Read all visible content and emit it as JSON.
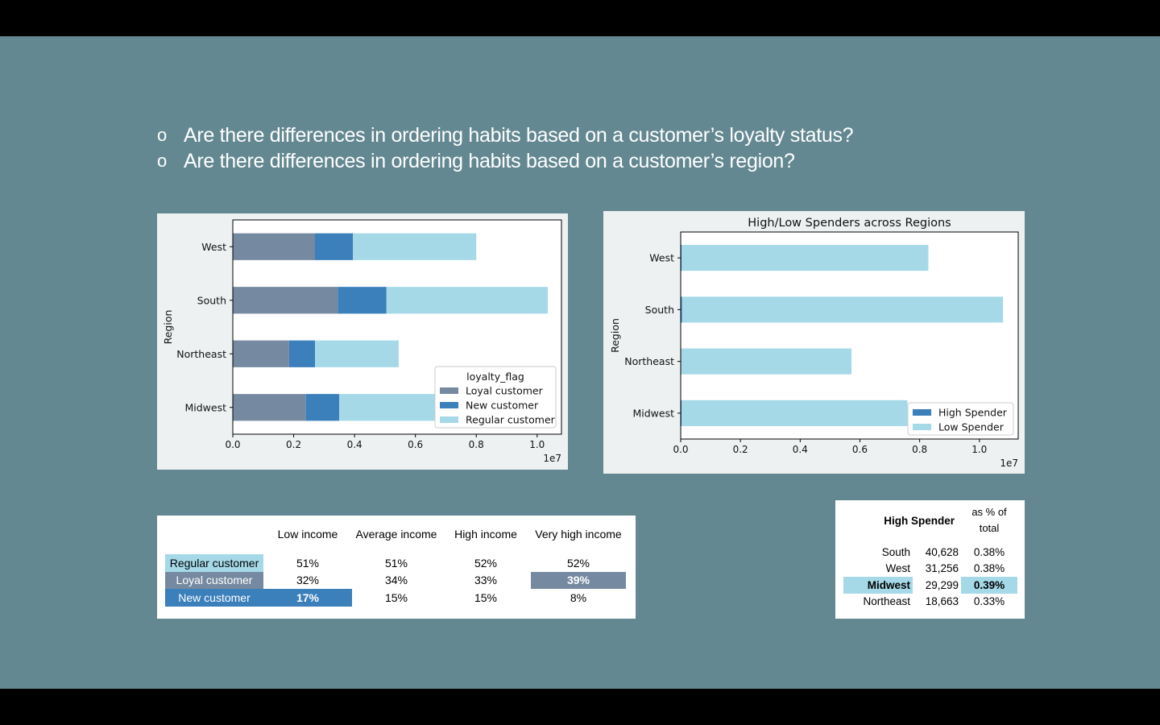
{
  "slide": {
    "background": "#648891",
    "bullet_mark": "o",
    "bullets": [
      "Are there differences in ordering habits based on a customer’s loyalty status?",
      "Are there differences in ordering habits based on a customer’s region?"
    ]
  },
  "colors": {
    "loyal": "#758aa0",
    "new": "#3b7fbb",
    "regular": "#a5d9e8",
    "high": "#3b7fbb",
    "low": "#a5d9e8",
    "panel_bg": "#eef1f2"
  },
  "chart_data": [
    {
      "type": "bar",
      "orientation": "horizontal",
      "stacked": true,
      "title": "",
      "ylabel": "Region",
      "xlabel": "",
      "categories": [
        "Midwest",
        "Northeast",
        "South",
        "West"
      ],
      "xlim": [
        0,
        10800000
      ],
      "xticks": [
        0,
        0.2,
        0.4,
        0.6,
        0.8,
        1.0
      ],
      "xtick_labels": [
        "0.0",
        "0.2",
        "0.4",
        "0.6",
        "0.8",
        "1.0"
      ],
      "x_offset_label": "1e7",
      "legend": {
        "title": "loyalty_flag",
        "position": "lower right"
      },
      "series": [
        {
          "name": "Loyal customer",
          "values": [
            2400000,
            1850000,
            3450000,
            2700000
          ]
        },
        {
          "name": "New customer",
          "values": [
            1100000,
            850000,
            1600000,
            1250000
          ]
        },
        {
          "name": "Regular customer",
          "values": [
            4100000,
            2750000,
            5300000,
            4050000
          ]
        }
      ]
    },
    {
      "type": "bar",
      "orientation": "horizontal",
      "stacked": true,
      "title": "High/Low Spenders across Regions",
      "ylabel": "Region",
      "xlabel": "",
      "categories": [
        "Midwest",
        "Northeast",
        "South",
        "West"
      ],
      "xlim": [
        0,
        11300000
      ],
      "xticks": [
        0,
        0.2,
        0.4,
        0.6,
        0.8,
        1.0
      ],
      "xtick_labels": [
        "0.0",
        "0.2",
        "0.4",
        "0.6",
        "0.8",
        "1.0"
      ],
      "x_offset_label": "1e7",
      "legend": {
        "title": "",
        "position": "lower right"
      },
      "series": [
        {
          "name": "High Spender",
          "values": [
            29299,
            18663,
            40628,
            31256
          ]
        },
        {
          "name": "Low Spender",
          "values": [
            7560000,
            5700000,
            10750000,
            8260000
          ]
        }
      ]
    }
  ],
  "income_table": {
    "columns": [
      "Low income",
      "Average income",
      "High income",
      "Very high income"
    ],
    "rows": [
      {
        "label": "Regular customer",
        "values": [
          "51%",
          "51%",
          "52%",
          "52%"
        ]
      },
      {
        "label": "Loyal customer",
        "values": [
          "32%",
          "34%",
          "33%",
          "39%"
        ]
      },
      {
        "label": "New customer",
        "values": [
          "17%",
          "15%",
          "15%",
          "8%"
        ]
      }
    ]
  },
  "spender_table": {
    "header": "High Spender",
    "header_pct_line1": "as % of",
    "header_pct_line2": "total",
    "rows": [
      {
        "region": "South",
        "count": "40,628",
        "pct": "0.38%"
      },
      {
        "region": "West",
        "count": "31,256",
        "pct": "0.38%"
      },
      {
        "region": "Midwest",
        "count": "29,299",
        "pct": "0.39%"
      },
      {
        "region": "Northeast",
        "count": "18,663",
        "pct": "0.33%"
      }
    ]
  }
}
